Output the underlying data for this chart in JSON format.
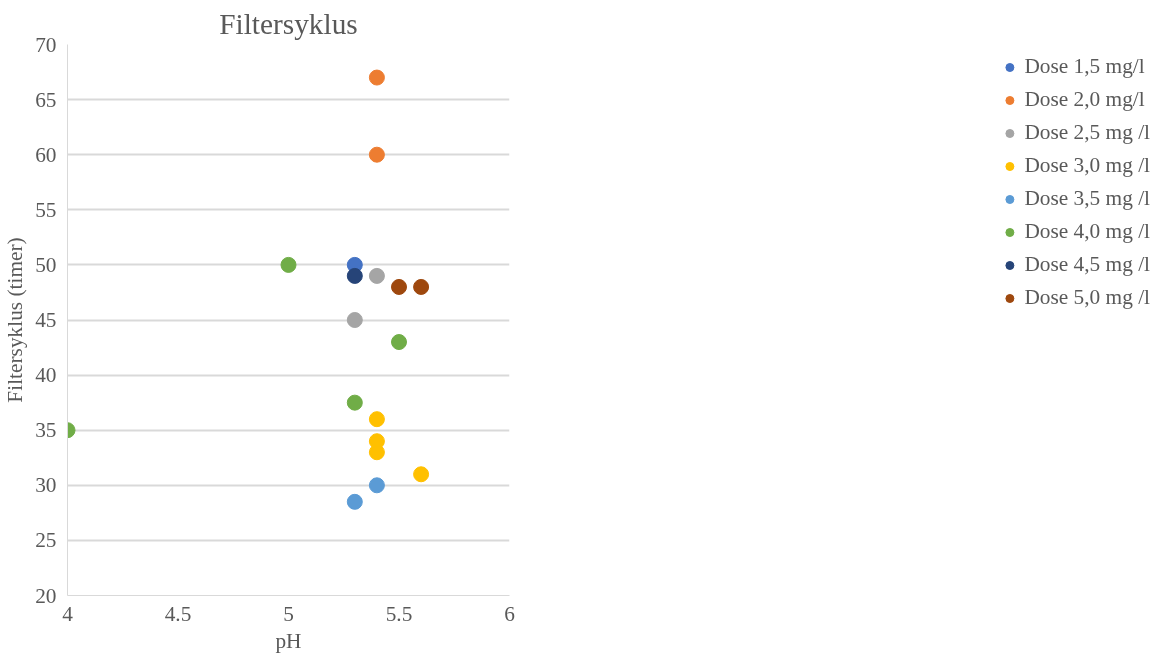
{
  "chart_data": {
    "type": "scatter",
    "title": "Filtersyklus",
    "xlabel": "pH",
    "ylabel": "Filtersyklus (timer)",
    "xlim": [
      4,
      6
    ],
    "xticks": [
      4,
      4.5,
      5,
      5.5,
      6
    ],
    "ylim": [
      20,
      70
    ],
    "yticks": [
      20,
      25,
      30,
      35,
      40,
      45,
      50,
      55,
      60,
      65,
      70
    ],
    "grid": "y",
    "legend": "right",
    "marker": "circle",
    "series": [
      {
        "name": "Dose 1,5 mg/l",
        "color": "#4472c4",
        "x": [
          5.3
        ],
        "values": [
          50
        ]
      },
      {
        "name": "Dose 2,0 mg/l",
        "color": "#ed7d31",
        "x": [
          5.4,
          5.4
        ],
        "values": [
          67,
          60
        ]
      },
      {
        "name": "Dose 2,5 mg /l",
        "color": "#a5a5a5",
        "x": [
          5.3,
          5.4
        ],
        "values": [
          45,
          49
        ]
      },
      {
        "name": "Dose 3,0 mg /l",
        "color": "#ffc000",
        "x": [
          5.4,
          5.4,
          5.4,
          5.6
        ],
        "values": [
          36,
          34,
          33,
          31
        ]
      },
      {
        "name": "Dose 3,5 mg /l",
        "color": "#5b9bd5",
        "x": [
          5.3,
          5.4
        ],
        "values": [
          28.5,
          30
        ]
      },
      {
        "name": "Dose 4,0 mg /l",
        "color": "#70ad47",
        "x": [
          4,
          5,
          5.3,
          5.5
        ],
        "values": [
          35,
          50,
          37.5,
          43
        ]
      },
      {
        "name": "Dose 4,5 mg /l",
        "color": "#264478",
        "x": [
          5.3
        ],
        "values": [
          49
        ]
      },
      {
        "name": "Dose 5,0 mg /l",
        "color": "#9e480e",
        "x": [
          5.5,
          5.6
        ],
        "values": [
          48,
          48
        ]
      }
    ]
  }
}
